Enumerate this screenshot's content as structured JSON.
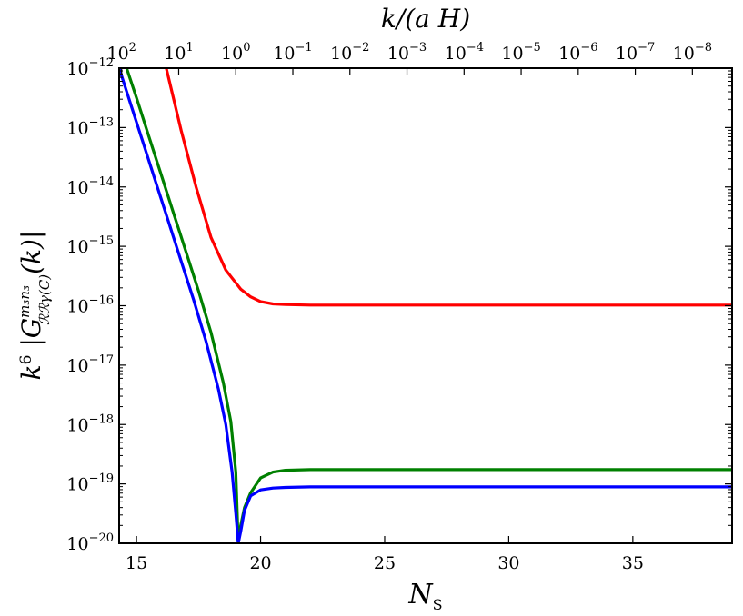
{
  "chart_data": {
    "type": "line",
    "title": "",
    "xlabel": {
      "main": "N",
      "sub": "S"
    },
    "x2label": "k/(a H)",
    "ylabel": {
      "prefix": "k",
      "prefix_sup": "6",
      "main": "|G",
      "sup": "m₃n₃",
      "sub": "ℛℛγ(C)",
      "suffix": "(k)|"
    },
    "xlim": [
      14.3,
      39
    ],
    "ylim_log10": [
      -20,
      -12
    ],
    "yscale": "log",
    "grid": false,
    "x_ticks": [
      15,
      20,
      25,
      30,
      35
    ],
    "x_tick_labels": [
      "15",
      "20",
      "25",
      "30",
      "35"
    ],
    "y_ticks_log10": [
      -20,
      -19,
      -18,
      -17,
      -16,
      -15,
      -14,
      -13,
      -12
    ],
    "y_tick_labels": [
      {
        "base": "10",
        "exp": "−20"
      },
      {
        "base": "10",
        "exp": "−19"
      },
      {
        "base": "10",
        "exp": "−18"
      },
      {
        "base": "10",
        "exp": "−17"
      },
      {
        "base": "10",
        "exp": "−16"
      },
      {
        "base": "10",
        "exp": "−15"
      },
      {
        "base": "10",
        "exp": "−14"
      },
      {
        "base": "10",
        "exp": "−13"
      },
      {
        "base": "10",
        "exp": "−12"
      }
    ],
    "top_axis": {
      "at_x": [
        14.4,
        16.7,
        19.0,
        21.3,
        23.6,
        25.9,
        28.2,
        30.5,
        32.8,
        35.1,
        37.4
      ],
      "labels": [
        {
          "base": "10",
          "exp": "2"
        },
        {
          "base": "10",
          "exp": "1"
        },
        {
          "base": "10",
          "exp": "0"
        },
        {
          "base": "10",
          "exp": "−1"
        },
        {
          "base": "10",
          "exp": "−2"
        },
        {
          "base": "10",
          "exp": "−3"
        },
        {
          "base": "10",
          "exp": "−4"
        },
        {
          "base": "10",
          "exp": "−5"
        },
        {
          "base": "10",
          "exp": "−6"
        },
        {
          "base": "10",
          "exp": "−7"
        },
        {
          "base": "10",
          "exp": "−8"
        }
      ]
    },
    "series": [
      {
        "color": "#ff0000",
        "x": [
          16.2,
          16.8,
          17.4,
          18.0,
          18.6,
          19.2,
          19.6,
          20.0,
          20.5,
          21.0,
          22.0,
          24.0,
          27.0,
          30.0,
          35.0,
          39.0
        ],
        "log10_y": [
          -12.0,
          -13.05,
          -14.0,
          -14.85,
          -15.4,
          -15.72,
          -15.85,
          -15.93,
          -15.97,
          -15.98,
          -15.99,
          -15.99,
          -15.99,
          -15.99,
          -15.99,
          -15.99
        ]
      },
      {
        "color": "#008000",
        "x": [
          14.6,
          15.0,
          15.5,
          16.0,
          16.5,
          17.0,
          17.5,
          18.0,
          18.5,
          18.8,
          19.0,
          19.1,
          19.2,
          19.35,
          19.6,
          20.0,
          20.5,
          21.0,
          22.0,
          25.0,
          30.0,
          35.0,
          39.0
        ],
        "log10_y": [
          -12.0,
          -12.5,
          -13.15,
          -13.8,
          -14.45,
          -15.1,
          -15.75,
          -16.45,
          -17.3,
          -17.95,
          -18.8,
          -20.0,
          -19.7,
          -19.4,
          -19.15,
          -18.9,
          -18.8,
          -18.77,
          -18.76,
          -18.76,
          -18.76,
          -18.76,
          -18.76
        ]
      },
      {
        "color": "#0000ff",
        "x": [
          14.3,
          14.8,
          15.3,
          15.8,
          16.3,
          16.8,
          17.3,
          17.8,
          18.3,
          18.6,
          18.85,
          19.0,
          19.1,
          19.2,
          19.35,
          19.6,
          20.0,
          20.5,
          21.0,
          22.0,
          25.0,
          30.0,
          35.0,
          39.0
        ],
        "log10_y": [
          -12.0,
          -12.65,
          -13.3,
          -13.95,
          -14.6,
          -15.25,
          -15.9,
          -16.6,
          -17.4,
          -18.0,
          -18.8,
          -19.5,
          -20.0,
          -19.8,
          -19.45,
          -19.2,
          -19.1,
          -19.07,
          -19.06,
          -19.05,
          -19.05,
          -19.05,
          -19.05,
          -19.05
        ]
      }
    ]
  }
}
